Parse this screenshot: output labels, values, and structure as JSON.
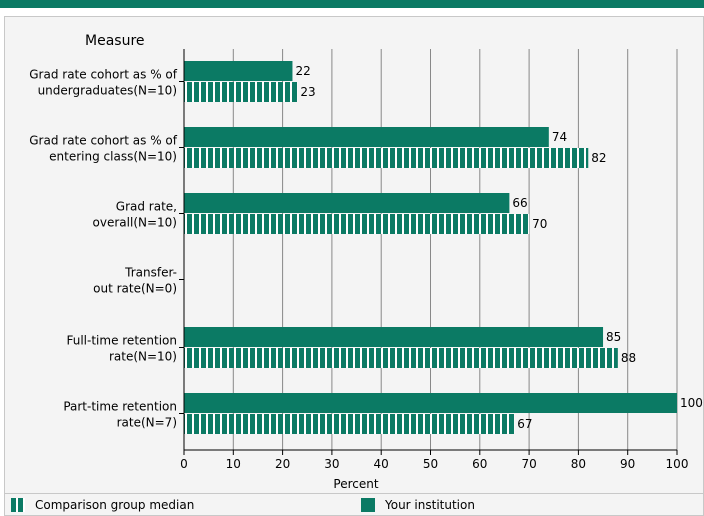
{
  "chart_data": {
    "type": "bar",
    "orientation": "horizontal",
    "category_header": "Measure",
    "categories": [
      [
        "Grad rate cohort as % of",
        "undergraduates(N=10)"
      ],
      [
        "Grad rate cohort as % of",
        "entering class(N=10)"
      ],
      [
        "Grad rate,",
        "overall(N=10)"
      ],
      [
        "Transfer-",
        "out rate(N=0)"
      ],
      [
        "Full-time retention",
        "rate(N=10)"
      ],
      [
        "Part-time retention",
        "rate(N=7)"
      ]
    ],
    "series": [
      {
        "name": "Your institution",
        "values": [
          22,
          74,
          66,
          null,
          85,
          100
        ]
      },
      {
        "name": "Comparison group median",
        "values": [
          23,
          82,
          70,
          null,
          88,
          67
        ]
      }
    ],
    "xlabel": "Percent",
    "xlim": [
      0,
      100
    ],
    "xticks": [
      0,
      10,
      20,
      30,
      40,
      50,
      60,
      70,
      80,
      90,
      100
    ],
    "grid": true,
    "legend_position": "bottom"
  },
  "legend": {
    "comparison_label": "Comparison group median",
    "institution_label": "Your institution"
  },
  "colors": {
    "bar": "#0b7a64",
    "stripe": "#ffffff",
    "grid": "#888888",
    "background": "#f4f4f4"
  }
}
